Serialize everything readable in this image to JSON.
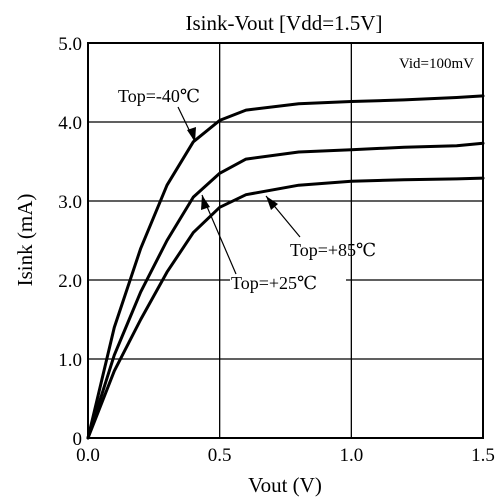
{
  "chart_data": {
    "type": "line",
    "title": "Isink-Vout [Vdd=1.5V]",
    "xlabel": "Vout (V)",
    "ylabel": "Isink (mA)",
    "xlim": [
      0,
      1.5
    ],
    "ylim": [
      0,
      5.0
    ],
    "xticks": [
      "0.0",
      "0.5",
      "1.0",
      "1.5"
    ],
    "yticks": [
      "0",
      "1.0",
      "2.0",
      "3.0",
      "4.0",
      "5.0"
    ],
    "grid": true,
    "annotation_box": "Vid=100mV",
    "series": [
      {
        "name": "Top=-40℃",
        "x": [
          0,
          0.1,
          0.2,
          0.3,
          0.4,
          0.5,
          0.6,
          0.8,
          1.0,
          1.2,
          1.4,
          1.5
        ],
        "y": [
          0,
          1.4,
          2.4,
          3.2,
          3.75,
          4.02,
          4.15,
          4.23,
          4.26,
          4.28,
          4.31,
          4.33
        ]
      },
      {
        "name": "Top=+25℃",
        "x": [
          0,
          0.1,
          0.2,
          0.3,
          0.4,
          0.5,
          0.6,
          0.8,
          1.0,
          1.2,
          1.4,
          1.5
        ],
        "y": [
          0,
          1.05,
          1.85,
          2.5,
          3.05,
          3.35,
          3.53,
          3.62,
          3.65,
          3.68,
          3.7,
          3.73
        ]
      },
      {
        "name": "Top=+85℃",
        "x": [
          0,
          0.1,
          0.2,
          0.3,
          0.4,
          0.5,
          0.6,
          0.8,
          1.0,
          1.2,
          1.4,
          1.5
        ],
        "y": [
          0,
          0.85,
          1.5,
          2.1,
          2.6,
          2.92,
          3.08,
          3.2,
          3.25,
          3.27,
          3.28,
          3.29
        ]
      }
    ]
  }
}
